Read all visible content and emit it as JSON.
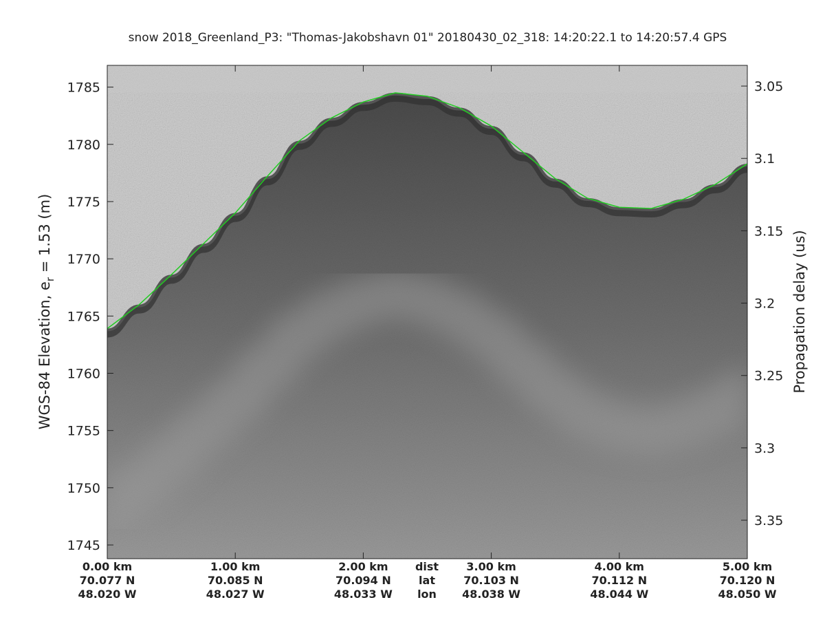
{
  "chart_data": {
    "type": "echogram",
    "title": "snow 2018_Greenland_P3: \"Thomas-Jakobshavn 01\"  20180430_02_318: 14:20:22.1 to 14:20:57.4 GPS",
    "ylabel": [
      "WGS-84 Elevation, e",
      "r",
      " = 1.53 (m)"
    ],
    "y2label": "Propagation delay (us)",
    "xlim": [
      0,
      5
    ],
    "xticks": [
      {
        "value": 0,
        "label": "0.00 km"
      },
      {
        "value": 1,
        "label": "1.00 km"
      },
      {
        "value": 2,
        "label": "2.00 km"
      },
      {
        "value": 3,
        "label": "3.00 km"
      },
      {
        "value": 4,
        "label": "4.00 km"
      },
      {
        "value": 5,
        "label": "5.00 km"
      }
    ],
    "lat_labels": [
      "70.077 N",
      "70.085 N",
      "70.094 N",
      "70.103 N",
      "70.112 N",
      "70.120 N"
    ],
    "lon_labels": [
      "48.020 W",
      "48.027 W",
      "48.033 W",
      "48.038 W",
      "48.044 W",
      "48.050 W"
    ],
    "row_labels": [
      "dist",
      "lat",
      "lon"
    ],
    "ylim": [
      1743.8,
      1786.9
    ],
    "yticks": [
      1745,
      1750,
      1755,
      1760,
      1765,
      1770,
      1775,
      1780,
      1785
    ],
    "y2lim": [
      3.3766,
      3.0357
    ],
    "y2ticks": [
      3.05,
      3.1,
      3.15,
      3.2,
      3.25,
      3.3,
      3.35
    ],
    "series": [
      {
        "name": "surface",
        "color": "#22cc22",
        "x": [
          0,
          0.25,
          0.5,
          0.75,
          1,
          1.25,
          1.5,
          1.75,
          2,
          2.25,
          2.5,
          2.75,
          3,
          3.25,
          3.5,
          3.75,
          4,
          4.25,
          4.5,
          4.75,
          5
        ],
        "values": [
          1763.9,
          1766.0,
          1768.6,
          1771.3,
          1774.0,
          1777.2,
          1780.3,
          1782.3,
          1783.7,
          1784.5,
          1784.2,
          1783.2,
          1781.6,
          1779.3,
          1777.0,
          1775.3,
          1774.5,
          1774.4,
          1775.2,
          1776.5,
          1778.3
        ]
      }
    ]
  }
}
